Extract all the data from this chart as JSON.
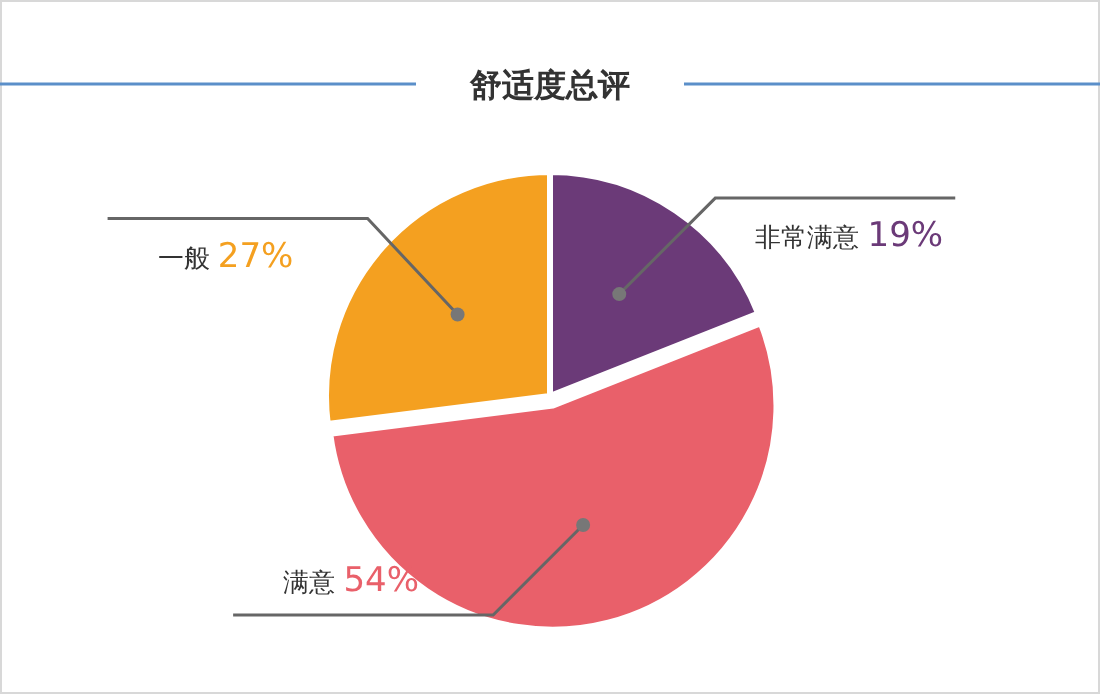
{
  "chart_data": {
    "type": "pie",
    "title": "舒适度总评",
    "categories": [
      "非常满意",
      "满意",
      "一般"
    ],
    "values": [
      19,
      54,
      27
    ],
    "value_labels": [
      "19%",
      "54%",
      "27%"
    ],
    "colors": [
      "#6b3a78",
      "#e9606a",
      "#f4a020"
    ],
    "legend": false
  }
}
